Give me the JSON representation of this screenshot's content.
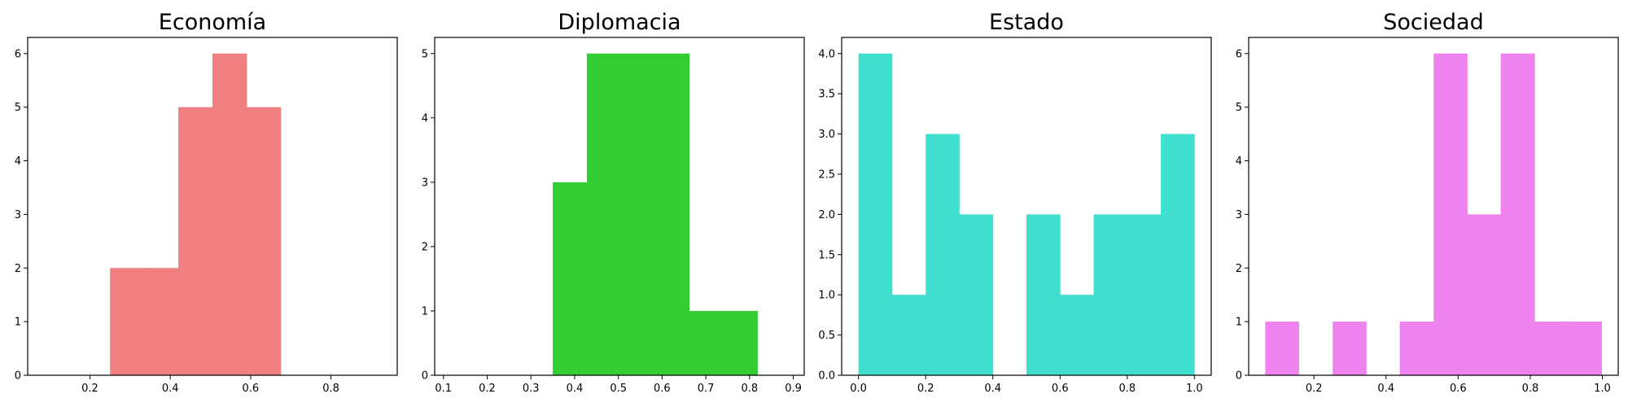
{
  "chart_data": [
    {
      "type": "histogram",
      "title": "Economía",
      "color": "#F08080",
      "bins": [
        {
          "x0": 0.25,
          "x1": 0.335,
          "count": 2
        },
        {
          "x0": 0.335,
          "x1": 0.42,
          "count": 2
        },
        {
          "x0": 0.42,
          "x1": 0.505,
          "count": 5
        },
        {
          "x0": 0.505,
          "x1": 0.59,
          "count": 6
        },
        {
          "x0": 0.59,
          "x1": 0.675,
          "count": 5
        }
      ],
      "xlim": [
        0.045,
        0.965
      ],
      "ylim": [
        0,
        6.3
      ],
      "xticks": [
        0.2,
        0.4,
        0.6,
        0.8
      ],
      "xtick_labels": [
        "0.2",
        "0.4",
        "0.6",
        "0.8"
      ],
      "yticks": [
        0,
        1,
        2,
        3,
        4,
        5,
        6
      ],
      "ytick_labels": [
        "0",
        "1",
        "2",
        "3",
        "4",
        "5",
        "6"
      ],
      "grid": false
    },
    {
      "type": "histogram",
      "title": "Diplomacia",
      "color": "#32CD32",
      "bins": [
        {
          "x0": 0.35,
          "x1": 0.428,
          "count": 3
        },
        {
          "x0": 0.428,
          "x1": 0.506,
          "count": 5
        },
        {
          "x0": 0.506,
          "x1": 0.584,
          "count": 5
        },
        {
          "x0": 0.584,
          "x1": 0.662,
          "count": 5
        },
        {
          "x0": 0.662,
          "x1": 0.74,
          "count": 1
        },
        {
          "x0": 0.74,
          "x1": 0.818,
          "count": 1
        }
      ],
      "xlim": [
        0.08,
        0.925
      ],
      "ylim": [
        0,
        5.25
      ],
      "xticks": [
        0.1,
        0.2,
        0.3,
        0.4,
        0.5,
        0.6,
        0.7,
        0.8,
        0.9
      ],
      "xtick_labels": [
        "0.1",
        "0.2",
        "0.3",
        "0.4",
        "0.5",
        "0.6",
        "0.7",
        "0.8",
        "0.9"
      ],
      "yticks": [
        0,
        1,
        2,
        3,
        4,
        5
      ],
      "ytick_labels": [
        "0",
        "1",
        "2",
        "3",
        "4",
        "5"
      ],
      "grid": false
    },
    {
      "type": "histogram",
      "title": "Estado",
      "color": "#40E0D0",
      "bins": [
        {
          "x0": 0.0,
          "x1": 0.1,
          "count": 4
        },
        {
          "x0": 0.1,
          "x1": 0.2,
          "count": 1
        },
        {
          "x0": 0.2,
          "x1": 0.3,
          "count": 3
        },
        {
          "x0": 0.3,
          "x1": 0.4,
          "count": 2
        },
        {
          "x0": 0.4,
          "x1": 0.5,
          "count": 0
        },
        {
          "x0": 0.5,
          "x1": 0.6,
          "count": 2
        },
        {
          "x0": 0.6,
          "x1": 0.7,
          "count": 1
        },
        {
          "x0": 0.7,
          "x1": 0.8,
          "count": 2
        },
        {
          "x0": 0.8,
          "x1": 0.9,
          "count": 2
        },
        {
          "x0": 0.9,
          "x1": 1.0,
          "count": 3
        }
      ],
      "xlim": [
        -0.05,
        1.05
      ],
      "ylim": [
        0,
        4.2
      ],
      "xticks": [
        0.0,
        0.2,
        0.4,
        0.6,
        0.8,
        1.0
      ],
      "xtick_labels": [
        "0.0",
        "0.2",
        "0.4",
        "0.6",
        "0.8",
        "1.0"
      ],
      "yticks": [
        0,
        0.5,
        1,
        1.5,
        2,
        2.5,
        3,
        3.5,
        4
      ],
      "ytick_labels": [
        "0.0",
        "0.5",
        "1.0",
        "1.5",
        "2.0",
        "2.5",
        "3.0",
        "3.5",
        "4.0"
      ],
      "grid": false
    },
    {
      "type": "histogram",
      "title": "Sociedad",
      "color": "#EE82EE",
      "bins": [
        {
          "x0": 0.065,
          "x1": 0.158,
          "count": 1
        },
        {
          "x0": 0.158,
          "x1": 0.252,
          "count": 0
        },
        {
          "x0": 0.252,
          "x1": 0.345,
          "count": 1
        },
        {
          "x0": 0.345,
          "x1": 0.438,
          "count": 0
        },
        {
          "x0": 0.438,
          "x1": 0.532,
          "count": 1
        },
        {
          "x0": 0.532,
          "x1": 0.625,
          "count": 6
        },
        {
          "x0": 0.625,
          "x1": 0.718,
          "count": 3
        },
        {
          "x0": 0.718,
          "x1": 0.812,
          "count": 6
        },
        {
          "x0": 0.812,
          "x1": 0.905,
          "count": 1
        },
        {
          "x0": 0.905,
          "x1": 0.998,
          "count": 1
        }
      ],
      "xlim": [
        0.019,
        1.044
      ],
      "ylim": [
        0,
        6.3
      ],
      "xticks": [
        0.2,
        0.4,
        0.6,
        0.8,
        1.0
      ],
      "xtick_labels": [
        "0.2",
        "0.4",
        "0.6",
        "0.8",
        "1.0"
      ],
      "yticks": [
        0,
        1,
        2,
        3,
        4,
        5,
        6
      ],
      "ytick_labels": [
        "0",
        "1",
        "2",
        "3",
        "4",
        "5",
        "6"
      ],
      "grid": false
    }
  ]
}
